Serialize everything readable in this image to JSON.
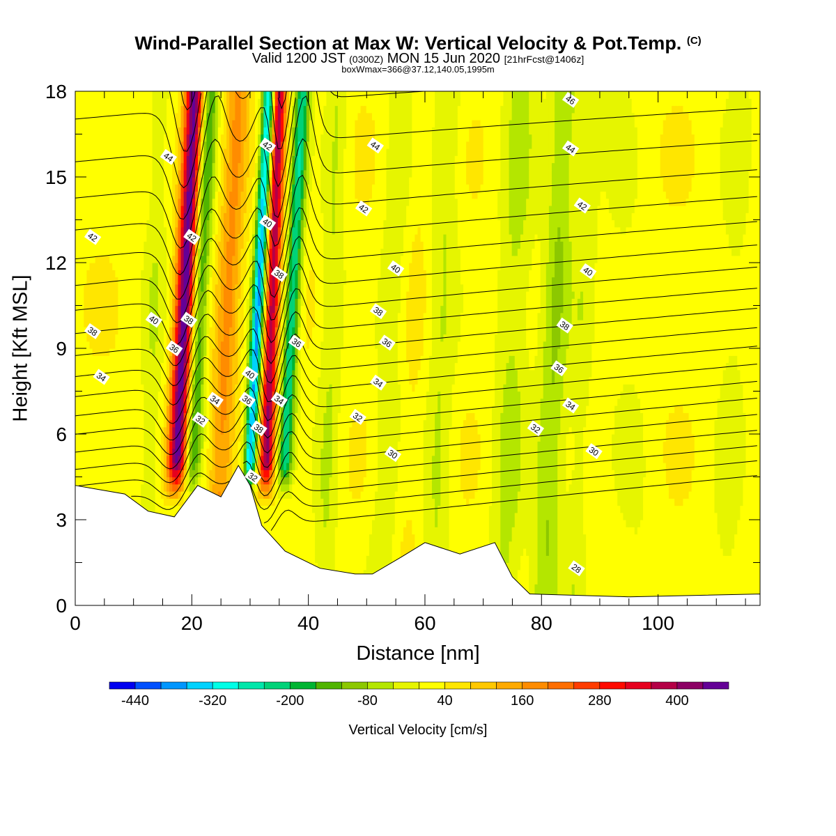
{
  "header": {
    "title": "Wind-Parallel Section at Max W: Vertical Velocity & Pot.Temp.",
    "title_mark": "(C)",
    "subtitle_a": "Valid 1200 JST",
    "subtitle_b": "(0300Z)",
    "subtitle_c": "MON 15 Jun 2020",
    "subtitle_d": "[21hrFcst@1406z]",
    "boxline": "boxWmax=366@37.12,140.05,1995m"
  },
  "chart_data": {
    "type": "heatmap",
    "title": "Wind-Parallel Section at Max W: Vertical Velocity & Pot.Temp. (C)",
    "xlabel": "Distance [nm]",
    "ylabel": "Height [Kft MSL]",
    "xlim": [
      0,
      117.5
    ],
    "ylim": [
      0,
      18
    ],
    "x_ticks": [
      0,
      20,
      40,
      60,
      80,
      100
    ],
    "y_ticks": [
      0,
      3,
      6,
      9,
      12,
      15,
      18
    ],
    "grid": false,
    "colorbar": {
      "label": "Vertical Velocity [cm/s]",
      "colors": [
        "#0000f0",
        "#0050ff",
        "#0096ff",
        "#00d2ff",
        "#00ffe6",
        "#00e6aa",
        "#00d278",
        "#00b432",
        "#50b400",
        "#8cc800",
        "#b4e600",
        "#e6f500",
        "#ffff00",
        "#ffe600",
        "#ffc800",
        "#ffaa00",
        "#ff8c00",
        "#ff6e00",
        "#ff3c00",
        "#ff0a00",
        "#e6001e",
        "#b40046",
        "#8c0064",
        "#640096"
      ],
      "tick_labels": [
        "-440",
        "-320",
        "-200",
        "-80",
        "40",
        "160",
        "280",
        "400"
      ],
      "range": [
        -480,
        480
      ],
      "step": 40
    },
    "terrain_kft": [
      [
        0,
        4.2
      ],
      [
        8.5,
        3.9
      ],
      [
        12.5,
        3.3
      ],
      [
        17,
        3.1
      ],
      [
        21,
        4.2
      ],
      [
        25,
        3.8
      ],
      [
        28,
        4.9
      ],
      [
        30,
        4.2
      ],
      [
        32,
        2.8
      ],
      [
        36,
        1.9
      ],
      [
        42,
        1.3
      ],
      [
        48,
        1.1
      ],
      [
        51,
        1.1
      ],
      [
        56,
        1.7
      ],
      [
        60,
        2.2
      ],
      [
        66,
        1.8
      ],
      [
        72,
        2.2
      ],
      [
        75,
        1.0
      ],
      [
        78,
        0.4
      ],
      [
        95,
        0.3
      ],
      [
        117.5,
        0.4
      ]
    ],
    "vertical_velocity_features": [
      {
        "x": 17,
        "tilt_nm": 3.5,
        "w": 440,
        "width_nm": 1.6
      },
      {
        "x": 19.7,
        "tilt_nm": 3.5,
        "w": -190,
        "width_nm": 1.4
      },
      {
        "x": 24.5,
        "tilt_nm": 3.5,
        "w": 140,
        "width_nm": 2.0
      },
      {
        "x": 29.5,
        "tilt_nm": 3.8,
        "w": -400,
        "width_nm": 1.1
      },
      {
        "x": 32.5,
        "tilt_nm": 2.5,
        "w": 366,
        "width_nm": 1.3
      },
      {
        "x": 35.5,
        "tilt_nm": 3.5,
        "w": -260,
        "width_nm": 1.3
      },
      {
        "x": 12.5,
        "tilt_nm": 2.0,
        "w": -60,
        "width_nm": 2.0
      },
      {
        "x": 43,
        "tilt_nm": 2.0,
        "w": -70,
        "width_nm": 2.0
      },
      {
        "x": 53,
        "tilt_nm": 3.0,
        "w": -60,
        "width_nm": 2.5
      },
      {
        "x": 57,
        "tilt_nm": 2.0,
        "w": 20,
        "width_nm": 2.5
      },
      {
        "x": 62,
        "tilt_nm": 2.0,
        "w": -70,
        "width_nm": 2.5
      },
      {
        "x": 74,
        "tilt_nm": 2.5,
        "w": -80,
        "width_nm": 3.0
      },
      {
        "x": 81,
        "tilt_nm": 3.0,
        "w": -110,
        "width_nm": 2.5
      },
      {
        "x": 86,
        "tilt_nm": 2.5,
        "w": -50,
        "width_nm": 2.0
      },
      {
        "x": 96,
        "tilt_nm": -3.0,
        "w": -30,
        "width_nm": 4.0
      },
      {
        "x": 112,
        "tilt_nm": 2.0,
        "w": -40,
        "width_nm": 3.0
      }
    ],
    "theta_contours": {
      "interval_C": 0.5,
      "label_interval_C": 2,
      "labels": [
        {
          "v": 42,
          "x": 3.0,
          "y": 12.9
        },
        {
          "v": 38,
          "x": 3.0,
          "y": 9.6
        },
        {
          "v": 34,
          "x": 4.5,
          "y": 8.0
        },
        {
          "v": 44,
          "x": 16.0,
          "y": 15.7
        },
        {
          "v": 42,
          "x": 20.0,
          "y": 12.9
        },
        {
          "v": 40,
          "x": 13.5,
          "y": 10.0
        },
        {
          "v": 38,
          "x": 19.5,
          "y": 10.0
        },
        {
          "v": 36,
          "x": 17.0,
          "y": 9.0
        },
        {
          "v": 34,
          "x": 24.0,
          "y": 7.2
        },
        {
          "v": 32,
          "x": 21.5,
          "y": 6.5
        },
        {
          "v": 42,
          "x": 33.0,
          "y": 16.1
        },
        {
          "v": 40,
          "x": 33.0,
          "y": 13.4
        },
        {
          "v": 38,
          "x": 35.0,
          "y": 11.6
        },
        {
          "v": 40,
          "x": 30.0,
          "y": 8.1
        },
        {
          "v": 36,
          "x": 29.5,
          "y": 7.2
        },
        {
          "v": 38,
          "x": 31.5,
          "y": 6.2
        },
        {
          "v": 34,
          "x": 35.0,
          "y": 7.2
        },
        {
          "v": 32,
          "x": 30.5,
          "y": 4.5
        },
        {
          "v": 36,
          "x": 38.0,
          "y": 9.2
        },
        {
          "v": 44,
          "x": 51.5,
          "y": 16.1
        },
        {
          "v": 42,
          "x": 49.5,
          "y": 13.9
        },
        {
          "v": 40,
          "x": 55.0,
          "y": 11.8
        },
        {
          "v": 38,
          "x": 52.0,
          "y": 10.3
        },
        {
          "v": 36,
          "x": 53.5,
          "y": 9.2
        },
        {
          "v": 34,
          "x": 52.0,
          "y": 7.8
        },
        {
          "v": 32,
          "x": 48.5,
          "y": 6.6
        },
        {
          "v": 30,
          "x": 54.5,
          "y": 5.3
        },
        {
          "v": 46,
          "x": 85.0,
          "y": 17.7
        },
        {
          "v": 44,
          "x": 85.0,
          "y": 16.0
        },
        {
          "v": 42,
          "x": 87.0,
          "y": 14.0
        },
        {
          "v": 40,
          "x": 88.0,
          "y": 11.7
        },
        {
          "v": 38,
          "x": 84.0,
          "y": 9.8
        },
        {
          "v": 36,
          "x": 83.0,
          "y": 8.3
        },
        {
          "v": 34,
          "x": 85.0,
          "y": 7.0
        },
        {
          "v": 32,
          "x": 79.0,
          "y": 6.2
        },
        {
          "v": 30,
          "x": 89.0,
          "y": 5.4
        },
        {
          "v": 28,
          "x": 86.0,
          "y": 1.3
        }
      ]
    }
  }
}
